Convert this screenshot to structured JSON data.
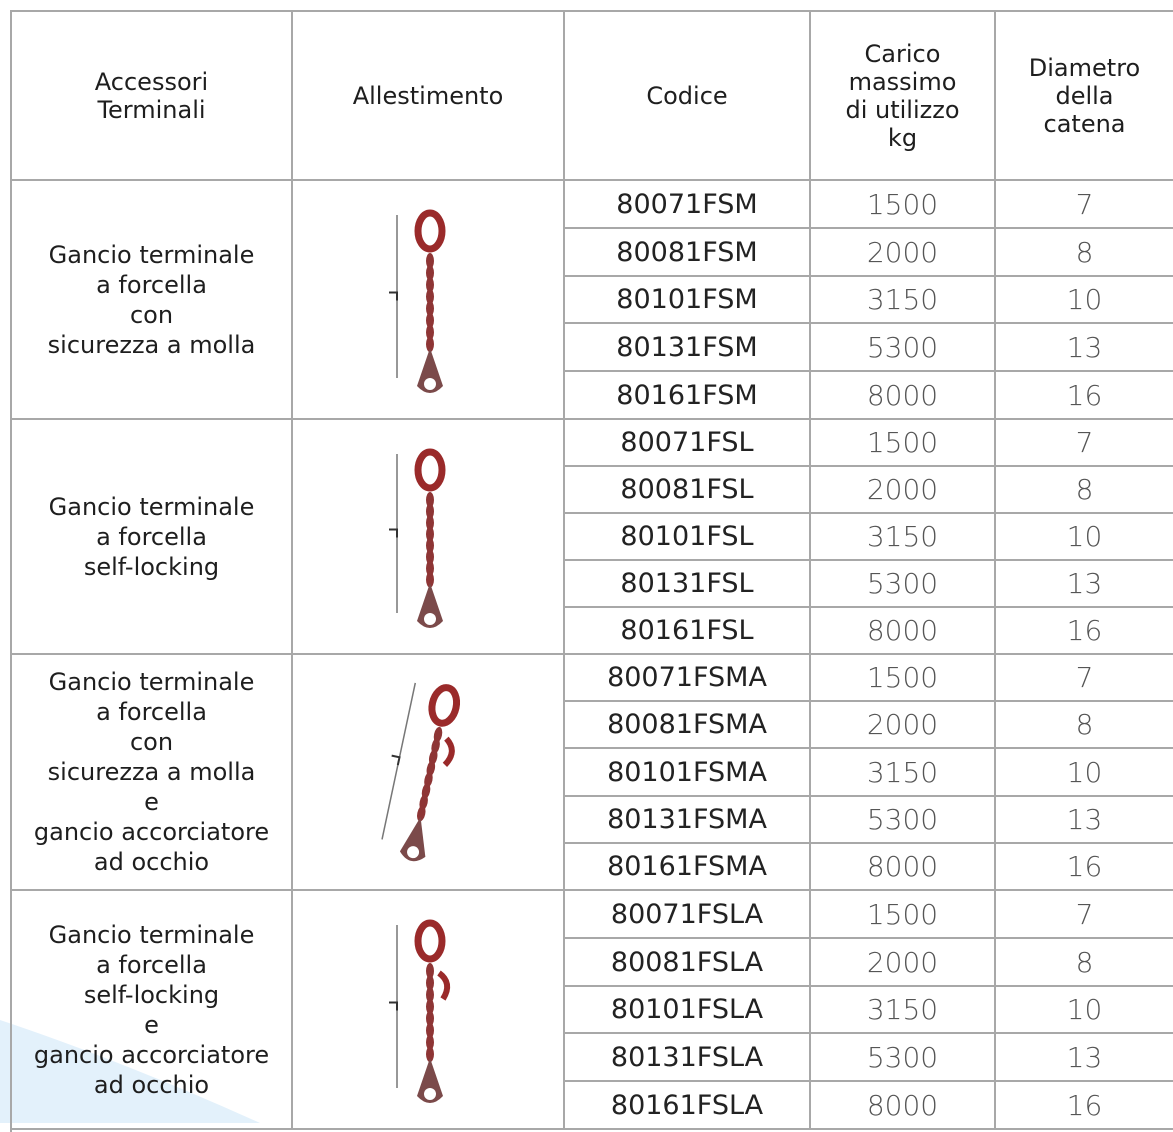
{
  "table": {
    "header": [
      "Accessori\nTerminali",
      "Allestimento",
      "Codice",
      "Carico\nmassimo\ndi utilizzo\nkg",
      "Diametro\ndella\ncatena"
    ],
    "groups": [
      {
        "label": "Gancio terminale\na forcella\ncon\nsicurezza a molla",
        "rows": [
          [
            "80071FSM",
            1500,
            7
          ],
          [
            "80081FSM",
            2000,
            8
          ],
          [
            "80101FSM",
            3150,
            10
          ],
          [
            "80131FSM",
            5300,
            13
          ],
          [
            "80161FSM",
            8000,
            16
          ]
        ]
      },
      {
        "label": "Gancio terminale\na forcella\nself-locking",
        "rows": [
          [
            "80071FSL",
            1500,
            7
          ],
          [
            "80081FSL",
            2000,
            8
          ],
          [
            "80101FSL",
            3150,
            10
          ],
          [
            "80131FSL",
            5300,
            13
          ],
          [
            "80161FSL",
            8000,
            16
          ]
        ]
      },
      {
        "label": "Gancio terminale\na forcella\ncon\nsicurezza a molla\ne\ngancio accorciatore\nad occhio",
        "rows": [
          [
            "80071FSMA",
            1500,
            7
          ],
          [
            "80081FSMA",
            2000,
            8
          ],
          [
            "80101FSMA",
            3150,
            10
          ],
          [
            "80131FSMA",
            5300,
            13
          ],
          [
            "80161FSMA",
            8000,
            16
          ]
        ]
      },
      {
        "label": "Gancio terminale\na forcella\nself-locking\ne\ngancio accorciatore\nad occhio",
        "rows": [
          [
            "80071FSLA",
            1500,
            7
          ],
          [
            "80081FSLA",
            2000,
            8
          ],
          [
            "80101FSLA",
            3150,
            10
          ],
          [
            "80131FSLA",
            5300,
            13
          ],
          [
            "80161FSLA",
            8000,
            16
          ]
        ]
      }
    ]
  }
}
